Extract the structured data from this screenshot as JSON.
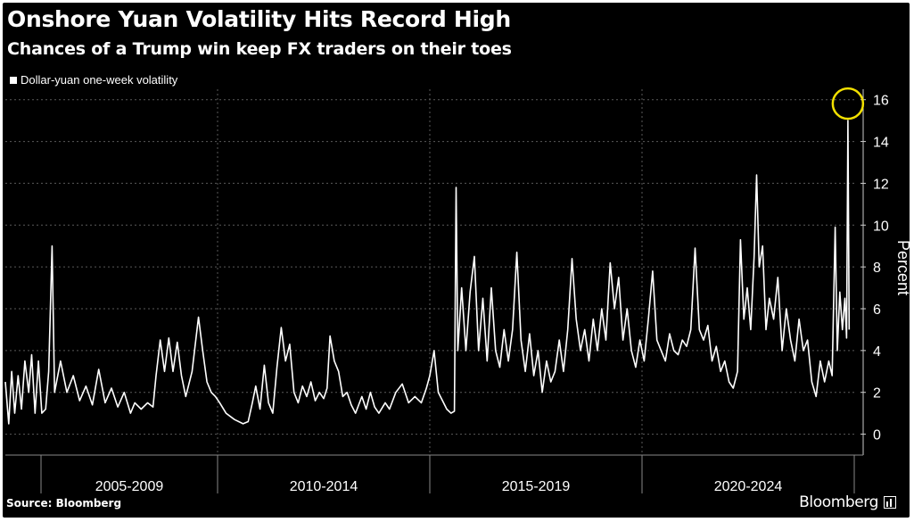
{
  "chart_data": {
    "type": "line",
    "title": "Onshore Yuan Volatility Hits Record High",
    "subtitle": "Chances of a Trump win keep FX traders on their toes",
    "ylabel": "Percent",
    "ylim": [
      -1,
      16.5
    ],
    "yticks": [
      0,
      2,
      4,
      6,
      8,
      10,
      12,
      14,
      16
    ],
    "xlim": [
      2005.0,
      2025.0
    ],
    "periods": [
      "2005-2009",
      "2010-2014",
      "2015-2019",
      "2020-2024"
    ],
    "grid": true,
    "legend_position": "top-left",
    "highlight": {
      "x": 2024.85,
      "y": 15.0
    },
    "series": [
      {
        "name": "Dollar-yuan one-week volatility",
        "color": "#ffffff",
        "points": [
          [
            2005.0,
            2.5
          ],
          [
            2005.08,
            0.5
          ],
          [
            2005.15,
            3.0
          ],
          [
            2005.22,
            1.0
          ],
          [
            2005.3,
            2.8
          ],
          [
            2005.38,
            1.2
          ],
          [
            2005.46,
            3.5
          ],
          [
            2005.55,
            2.0
          ],
          [
            2005.62,
            3.8
          ],
          [
            2005.7,
            1.0
          ],
          [
            2005.78,
            3.5
          ],
          [
            2005.86,
            1.0
          ],
          [
            2005.95,
            1.2
          ],
          [
            2006.02,
            3.0
          ],
          [
            2006.1,
            9.0
          ],
          [
            2006.16,
            2.0
          ],
          [
            2006.3,
            3.5
          ],
          [
            2006.45,
            2.0
          ],
          [
            2006.6,
            2.8
          ],
          [
            2006.75,
            1.6
          ],
          [
            2006.9,
            2.3
          ],
          [
            2007.05,
            1.4
          ],
          [
            2007.2,
            3.1
          ],
          [
            2007.35,
            1.5
          ],
          [
            2007.5,
            2.2
          ],
          [
            2007.65,
            1.3
          ],
          [
            2007.8,
            2.0
          ],
          [
            2007.95,
            1.0
          ],
          [
            2008.05,
            1.5
          ],
          [
            2008.2,
            1.2
          ],
          [
            2008.35,
            1.5
          ],
          [
            2008.48,
            1.3
          ],
          [
            2008.55,
            2.8
          ],
          [
            2008.65,
            4.5
          ],
          [
            2008.75,
            3.0
          ],
          [
            2008.85,
            4.6
          ],
          [
            2008.95,
            3.0
          ],
          [
            2009.05,
            4.4
          ],
          [
            2009.15,
            2.8
          ],
          [
            2009.25,
            1.8
          ],
          [
            2009.4,
            3.0
          ],
          [
            2009.55,
            5.6
          ],
          [
            2009.65,
            4.0
          ],
          [
            2009.75,
            2.5
          ],
          [
            2009.85,
            2.0
          ],
          [
            2009.95,
            1.8
          ],
          [
            2010.05,
            1.5
          ],
          [
            2010.2,
            1.0
          ],
          [
            2010.4,
            0.7
          ],
          [
            2010.6,
            0.5
          ],
          [
            2010.72,
            0.6
          ],
          [
            2010.82,
            1.5
          ],
          [
            2010.9,
            2.3
          ],
          [
            2011.0,
            1.2
          ],
          [
            2011.1,
            3.3
          ],
          [
            2011.2,
            1.5
          ],
          [
            2011.3,
            1.0
          ],
          [
            2011.4,
            3.2
          ],
          [
            2011.5,
            5.1
          ],
          [
            2011.6,
            3.5
          ],
          [
            2011.7,
            4.3
          ],
          [
            2011.8,
            2.0
          ],
          [
            2011.9,
            1.5
          ],
          [
            2012.0,
            2.3
          ],
          [
            2012.1,
            1.8
          ],
          [
            2012.2,
            2.5
          ],
          [
            2012.3,
            1.6
          ],
          [
            2012.4,
            2.0
          ],
          [
            2012.5,
            1.7
          ],
          [
            2012.58,
            2.2
          ],
          [
            2012.65,
            4.7
          ],
          [
            2012.75,
            3.5
          ],
          [
            2012.85,
            3.0
          ],
          [
            2012.95,
            1.8
          ],
          [
            2013.05,
            2.0
          ],
          [
            2013.15,
            1.4
          ],
          [
            2013.25,
            1.0
          ],
          [
            2013.4,
            1.8
          ],
          [
            2013.5,
            1.2
          ],
          [
            2013.6,
            2.0
          ],
          [
            2013.7,
            1.3
          ],
          [
            2013.8,
            1.0
          ],
          [
            2013.95,
            1.5
          ],
          [
            2014.05,
            1.2
          ],
          [
            2014.2,
            2.0
          ],
          [
            2014.35,
            2.4
          ],
          [
            2014.5,
            1.5
          ],
          [
            2014.65,
            1.8
          ],
          [
            2014.8,
            1.5
          ],
          [
            2014.92,
            2.2
          ],
          [
            2015.0,
            2.8
          ],
          [
            2015.1,
            4.0
          ],
          [
            2015.2,
            2.0
          ],
          [
            2015.3,
            1.6
          ],
          [
            2015.4,
            1.2
          ],
          [
            2015.5,
            1.0
          ],
          [
            2015.58,
            1.1
          ],
          [
            2015.62,
            11.8
          ],
          [
            2015.66,
            4.0
          ],
          [
            2015.75,
            7.0
          ],
          [
            2015.85,
            4.0
          ],
          [
            2015.95,
            6.8
          ],
          [
            2016.05,
            8.5
          ],
          [
            2016.15,
            4.0
          ],
          [
            2016.25,
            6.5
          ],
          [
            2016.35,
            3.5
          ],
          [
            2016.45,
            7.0
          ],
          [
            2016.55,
            4.0
          ],
          [
            2016.65,
            3.2
          ],
          [
            2016.75,
            5.0
          ],
          [
            2016.85,
            3.5
          ],
          [
            2016.95,
            5.0
          ],
          [
            2017.05,
            8.7
          ],
          [
            2017.15,
            4.5
          ],
          [
            2017.25,
            3.0
          ],
          [
            2017.35,
            4.8
          ],
          [
            2017.45,
            2.8
          ],
          [
            2017.55,
            4.0
          ],
          [
            2017.65,
            2.0
          ],
          [
            2017.75,
            3.5
          ],
          [
            2017.85,
            2.5
          ],
          [
            2017.95,
            3.0
          ],
          [
            2018.05,
            4.5
          ],
          [
            2018.15,
            3.0
          ],
          [
            2018.25,
            5.0
          ],
          [
            2018.35,
            8.4
          ],
          [
            2018.45,
            5.5
          ],
          [
            2018.55,
            4.0
          ],
          [
            2018.65,
            5.0
          ],
          [
            2018.75,
            3.5
          ],
          [
            2018.85,
            5.5
          ],
          [
            2018.95,
            4.0
          ],
          [
            2019.05,
            6.0
          ],
          [
            2019.15,
            4.5
          ],
          [
            2019.25,
            8.2
          ],
          [
            2019.35,
            6.0
          ],
          [
            2019.45,
            7.5
          ],
          [
            2019.55,
            4.5
          ],
          [
            2019.65,
            6.0
          ],
          [
            2019.75,
            4.0
          ],
          [
            2019.85,
            3.2
          ],
          [
            2019.95,
            4.5
          ],
          [
            2020.05,
            3.5
          ],
          [
            2020.15,
            5.5
          ],
          [
            2020.25,
            7.8
          ],
          [
            2020.35,
            4.5
          ],
          [
            2020.45,
            4.0
          ],
          [
            2020.55,
            3.5
          ],
          [
            2020.65,
            4.8
          ],
          [
            2020.75,
            4.0
          ],
          [
            2020.85,
            3.8
          ],
          [
            2020.95,
            4.5
          ],
          [
            2021.05,
            4.2
          ],
          [
            2021.15,
            5.0
          ],
          [
            2021.25,
            8.9
          ],
          [
            2021.35,
            5.0
          ],
          [
            2021.45,
            4.5
          ],
          [
            2021.55,
            5.2
          ],
          [
            2021.65,
            3.5
          ],
          [
            2021.75,
            4.2
          ],
          [
            2021.85,
            3.0
          ],
          [
            2021.95,
            3.5
          ],
          [
            2022.05,
            2.5
          ],
          [
            2022.15,
            2.2
          ],
          [
            2022.25,
            3.0
          ],
          [
            2022.32,
            9.3
          ],
          [
            2022.4,
            5.5
          ],
          [
            2022.48,
            7.0
          ],
          [
            2022.56,
            5.0
          ],
          [
            2022.64,
            8.5
          ],
          [
            2022.7,
            12.4
          ],
          [
            2022.76,
            8.0
          ],
          [
            2022.84,
            9.0
          ],
          [
            2022.92,
            5.0
          ],
          [
            2023.0,
            6.5
          ],
          [
            2023.1,
            5.5
          ],
          [
            2023.2,
            7.5
          ],
          [
            2023.3,
            4.0
          ],
          [
            2023.4,
            6.0
          ],
          [
            2023.5,
            4.5
          ],
          [
            2023.6,
            3.5
          ],
          [
            2023.7,
            5.5
          ],
          [
            2023.8,
            4.0
          ],
          [
            2023.9,
            4.5
          ],
          [
            2024.0,
            2.5
          ],
          [
            2024.1,
            1.8
          ],
          [
            2024.2,
            3.5
          ],
          [
            2024.3,
            2.5
          ],
          [
            2024.4,
            3.5
          ],
          [
            2024.48,
            2.8
          ],
          [
            2024.55,
            9.9
          ],
          [
            2024.6,
            4.0
          ],
          [
            2024.66,
            6.8
          ],
          [
            2024.72,
            5.0
          ],
          [
            2024.78,
            6.5
          ],
          [
            2024.82,
            4.6
          ],
          [
            2024.85,
            15.0
          ],
          [
            2024.88,
            5.0
          ]
        ]
      }
    ]
  },
  "footer": {
    "source": "Source: Bloomberg",
    "brand": "Bloomberg"
  }
}
